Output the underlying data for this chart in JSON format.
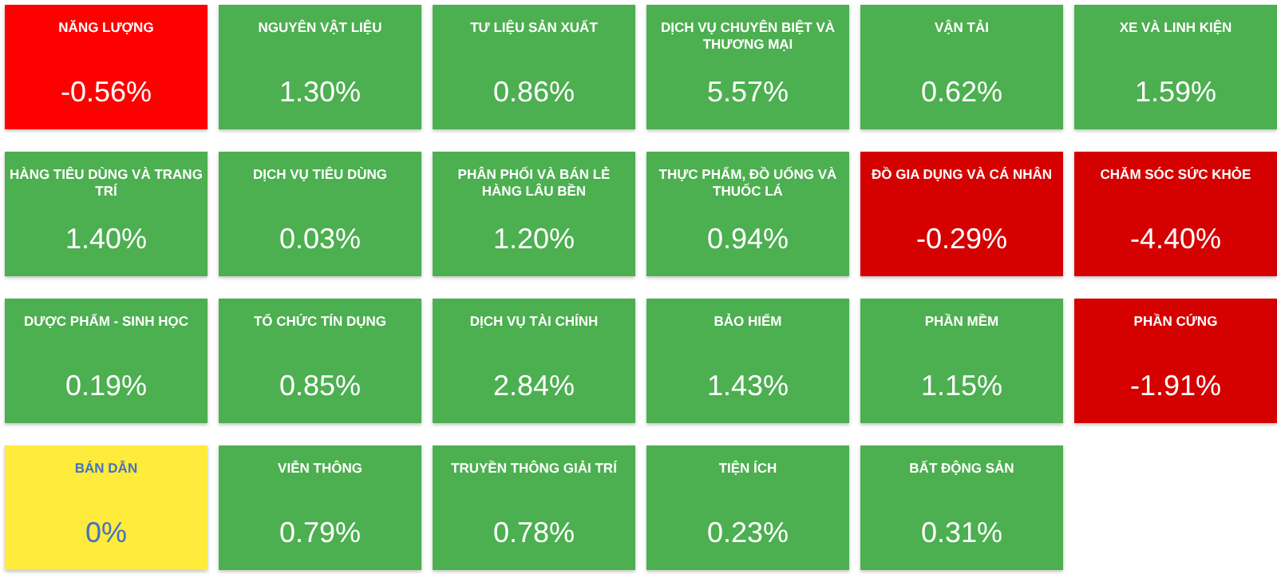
{
  "chart_data": {
    "type": "other",
    "categories": [
      "NĂNG LƯỢNG",
      "NGUYÊN VẬT LIỆU",
      "TƯ LIỆU SẢN XUẤT",
      "DỊCH VỤ CHUYÊN BIỆT VÀ THƯƠNG MẠI",
      "VẬN TẢI",
      "XE VÀ LINH KIỆN",
      "HÀNG TIÊU DÙNG VÀ TRANG TRÍ",
      "DỊCH VỤ TIÊU DÙNG",
      "PHÂN PHỐI VÀ BÁN LẺ HÀNG LÂU BỀN",
      "THỰC PHẨM, ĐỒ UỐNG VÀ THUỐC LÁ",
      "ĐỒ GIA DỤNG VÀ CÁ NHÂN",
      "CHĂM SÓC SỨC KHỎE",
      "DƯỢC PHẨM - SINH HỌC",
      "TỔ CHỨC TÍN DỤNG",
      "DỊCH VỤ TÀI CHÍNH",
      "BẢO HIỂM",
      "PHẦN MỀM",
      "PHẦN CỨNG",
      "BÁN DẪN",
      "VIỄN THÔNG",
      "TRUYỀN THÔNG GIẢI TRÍ",
      "TIỆN ÍCH",
      "BẤT ĐỘNG SẢN"
    ],
    "values": [
      -0.56,
      1.3,
      0.86,
      5.57,
      0.62,
      1.59,
      1.4,
      0.03,
      1.2,
      0.94,
      -0.29,
      -4.4,
      0.19,
      0.85,
      2.84,
      1.43,
      1.15,
      -1.91,
      0,
      0.79,
      0.78,
      0.23,
      0.31
    ],
    "value_labels": [
      "-0.56%",
      "1.30%",
      "0.86%",
      "5.57%",
      "0.62%",
      "1.59%",
      "1.40%",
      "0.03%",
      "1.20%",
      "0.94%",
      "-0.29%",
      "-4.40%",
      "0.19%",
      "0.85%",
      "2.84%",
      "1.43%",
      "1.15%",
      "-1.91%",
      "0%",
      "0.79%",
      "0.78%",
      "0.23%",
      "0.31%"
    ],
    "colors": [
      "#ff0000",
      "#4caf50",
      "#4caf50",
      "#4caf50",
      "#4caf50",
      "#4caf50",
      "#4caf50",
      "#4caf50",
      "#4caf50",
      "#4caf50",
      "#d50000",
      "#d50000",
      "#4caf50",
      "#4caf50",
      "#4caf50",
      "#4caf50",
      "#4caf50",
      "#d50000",
      "#ffeb3b",
      "#4caf50",
      "#4caf50",
      "#4caf50",
      "#4caf50"
    ],
    "data_labels": true
  }
}
